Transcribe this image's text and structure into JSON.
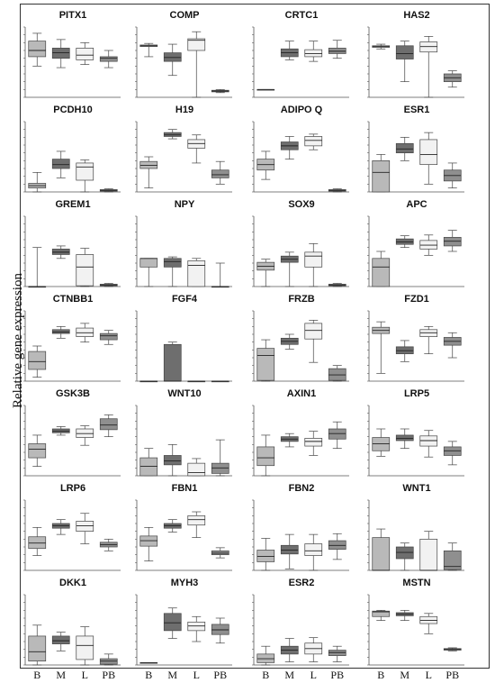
{
  "y_axis_label": "Relative gene expression",
  "x_groups": [
    "B",
    "M",
    "L",
    "PB"
  ],
  "group_colors": {
    "B": "#b9b9b9",
    "M": "#6e6e6e",
    "L": "#f2f2f2",
    "PB": "#8f8f8f"
  },
  "chart_data": [
    {
      "type": "box",
      "title": "PITX1",
      "ylim": [
        -6,
        3
      ],
      "boxes": [
        [
          -2,
          -0.8,
          0,
          1.2,
          2.2
        ],
        [
          -2.2,
          -1,
          -0.3,
          0.3,
          1.4
        ],
        [
          -1.8,
          -1.2,
          -0.6,
          0.3,
          1
        ],
        [
          -2.2,
          -1.4,
          -1,
          -0.8,
          0
        ]
      ]
    },
    {
      "type": "box",
      "title": "COMP",
      "ylim": [
        -6,
        3
      ],
      "boxes": [
        [
          -0.8,
          0.5,
          0.6,
          0.7,
          0.9
        ],
        [
          -3.2,
          -1.4,
          -0.9,
          -0.3,
          0.8
        ],
        [
          -6,
          0,
          1.3,
          1.5,
          2.4
        ],
        [
          -5.4,
          -5.3,
          -5.2,
          -5.1,
          -5
        ]
      ]
    },
    {
      "type": "box",
      "title": "CRTC1",
      "ylim": [
        -6,
        3
      ],
      "boxes": [
        [
          -5,
          -5,
          -5,
          -5,
          -5
        ],
        [
          -1.2,
          -0.8,
          -0.3,
          0.2,
          1.2
        ],
        [
          -1.4,
          -0.8,
          -0.4,
          0.1,
          1.2
        ],
        [
          -1,
          -0.4,
          -0.1,
          0.3,
          1.3
        ]
      ]
    },
    {
      "type": "box",
      "title": "HAS2",
      "ylim": [
        -6,
        3
      ],
      "boxes": [
        [
          0.2,
          0.4,
          0.5,
          0.6,
          0.8
        ],
        [
          -4,
          -1.1,
          -0.4,
          0.6,
          1.2
        ],
        [
          -6,
          -0.2,
          0.5,
          1.1,
          1.8
        ],
        [
          -4.7,
          -4,
          -3.5,
          -3,
          -2.6
        ]
      ]
    },
    {
      "type": "box",
      "title": "PCDH10",
      "ylim": [
        -6,
        3
      ],
      "boxes": [
        [
          -6,
          -5.5,
          -5.2,
          -4.9,
          -3.5
        ],
        [
          -4.2,
          -3,
          -2.5,
          -1.8,
          -0.8
        ],
        [
          -6,
          -4.5,
          -2.8,
          -2.3,
          -1.9
        ],
        [
          -6,
          -5.9,
          -5.8,
          -5.7,
          -5.6
        ]
      ]
    },
    {
      "type": "box",
      "title": "H19",
      "ylim": [
        -6,
        3
      ],
      "boxes": [
        [
          -5.5,
          -3,
          -2.6,
          -2.1,
          -1.5
        ],
        [
          0.8,
          1.1,
          1.3,
          1.6,
          2
        ],
        [
          -2.3,
          -0.4,
          0.2,
          0.7,
          1.3
        ],
        [
          -5,
          -4.2,
          -3.8,
          -3.2,
          -2.1
        ]
      ]
    },
    {
      "type": "box",
      "title": "ADIPO Q",
      "ylim": [
        -6,
        3
      ],
      "boxes": [
        [
          -4.4,
          -3.2,
          -2.5,
          -1.8,
          -0.8
        ],
        [
          -1.8,
          -0.6,
          -0.1,
          0.4,
          1.1
        ],
        [
          -0.6,
          -0.1,
          0.6,
          1.1,
          1.4
        ],
        [
          -6,
          -5.9,
          -5.8,
          -5.7,
          -5.6
        ]
      ]
    },
    {
      "type": "box",
      "title": "ESR1",
      "ylim": [
        -6,
        3
      ],
      "boxes": [
        [
          -6,
          -6,
          -3.5,
          -2,
          -1.2
        ],
        [
          -2,
          -1,
          -0.5,
          0.2,
          1
        ],
        [
          -5,
          -2.5,
          -1.2,
          0.7,
          1.6
        ],
        [
          -5.5,
          -4.6,
          -3.9,
          -3.2,
          -2.3
        ]
      ]
    },
    {
      "type": "box",
      "title": "GREM1",
      "ylim": [
        -6,
        3
      ],
      "boxes": [
        [
          -6,
          -6,
          -6,
          -6,
          -1
        ],
        [
          -2.4,
          -1.9,
          -1.6,
          -1.2,
          -0.8
        ],
        [
          -6,
          -5.9,
          -3.5,
          -1.9,
          -1.1
        ],
        [
          -6,
          -5.9,
          -5.8,
          -5.7,
          -5.6
        ]
      ]
    },
    {
      "type": "box",
      "title": "NPY",
      "ylim": [
        -6,
        3
      ],
      "boxes": [
        [
          -6,
          -3.5,
          -2.4,
          -2.4,
          -2.4
        ],
        [
          -6,
          -3.5,
          -2.8,
          -2.4,
          -2.2
        ],
        [
          -6,
          -6,
          -3.3,
          -2.7,
          -2.4
        ],
        [
          -6,
          -6,
          -6,
          -6,
          -3
        ]
      ]
    },
    {
      "type": "box",
      "title": "SOX9",
      "ylim": [
        -6,
        3
      ],
      "boxes": [
        [
          -6,
          -3.9,
          -3.4,
          -2.9,
          -2.5
        ],
        [
          -6,
          -2.9,
          -2.5,
          -2.1,
          -1.6
        ],
        [
          -6,
          -3.5,
          -2.1,
          -1.6,
          -0.5
        ],
        [
          -6,
          -5.9,
          -5.8,
          -5.7,
          -5.6
        ]
      ]
    },
    {
      "type": "box",
      "title": "APC",
      "ylim": [
        -6,
        3
      ],
      "boxes": [
        [
          -6,
          -6,
          -3.5,
          -2.4,
          -1.5
        ],
        [
          -1,
          -0.6,
          -0.3,
          0.1,
          0.5
        ],
        [
          -2,
          -1.2,
          -0.7,
          -0.1,
          0.6
        ],
        [
          -1.5,
          -0.8,
          -0.2,
          0.3,
          1.2
        ]
      ]
    },
    {
      "type": "box",
      "title": "CTNBB1",
      "ylim": [
        -6,
        3
      ],
      "boxes": [
        [
          -5.5,
          -4.5,
          -3.5,
          -2.2,
          -1.5
        ],
        [
          -0.5,
          0.1,
          0.3,
          0.6,
          1
        ],
        [
          -1,
          -0.3,
          0.2,
          0.8,
          1.4
        ],
        [
          -1.3,
          -0.7,
          -0.2,
          0.1,
          0.5
        ]
      ]
    },
    {
      "type": "box",
      "title": "FGF4",
      "ylim": [
        -6,
        3
      ],
      "boxes": [
        [
          -6,
          -6,
          -6,
          -6,
          -6
        ],
        [
          -6,
          -6,
          -6,
          -1.3,
          -1
        ],
        [
          -6,
          -6,
          -6,
          -6,
          -6
        ],
        [
          -6,
          -6,
          -6,
          -6,
          -6
        ]
      ]
    },
    {
      "type": "box",
      "title": "FRZB",
      "ylim": [
        -6,
        3
      ],
      "boxes": [
        [
          -6,
          -5.9,
          -2.7,
          -1.8,
          -0.7
        ],
        [
          -1.9,
          -1.3,
          -0.9,
          -0.5,
          0
        ],
        [
          -3.6,
          -0.6,
          0.5,
          1.4,
          1.8
        ],
        [
          -6,
          -5.9,
          -5.2,
          -4.4,
          -4
        ]
      ]
    },
    {
      "type": "box",
      "title": "FZD1",
      "ylim": [
        -6,
        3
      ],
      "boxes": [
        [
          -5,
          0.1,
          0.5,
          0.9,
          1.6
        ],
        [
          -3.5,
          -2.5,
          -2.1,
          -1.6,
          -0.8
        ],
        [
          -2.5,
          -0.3,
          0.2,
          0.6,
          1
        ],
        [
          -3,
          -1.4,
          -0.9,
          -0.4,
          0.2
        ]
      ]
    },
    {
      "type": "box",
      "title": "GSK3B",
      "ylim": [
        -6,
        3
      ],
      "boxes": [
        [
          -4.8,
          -3.7,
          -2.6,
          -1.9,
          -0.8
        ],
        [
          -0.8,
          -0.5,
          -0.3,
          0,
          0.3
        ],
        [
          -2.1,
          -1.1,
          -0.6,
          0,
          0.4
        ],
        [
          -1,
          -0.1,
          0.5,
          1.3,
          1.8
        ]
      ]
    },
    {
      "type": "box",
      "title": "WNT10",
      "ylim": [
        -6,
        3
      ],
      "boxes": [
        [
          -6,
          -6,
          -4.8,
          -3.7,
          -2.5
        ],
        [
          -6,
          -4.6,
          -4.1,
          -3.4,
          -2
        ],
        [
          -6,
          -6,
          -5.6,
          -4.4,
          -3.8
        ],
        [
          -6,
          -5.7,
          -5,
          -4.4,
          -1.4
        ]
      ]
    },
    {
      "type": "box",
      "title": "AXIN1",
      "ylim": [
        -6,
        3
      ],
      "boxes": [
        [
          -6,
          -4.7,
          -3.7,
          -2.3,
          -0.8
        ],
        [
          -2.3,
          -1.6,
          -1.3,
          -1,
          -0.6
        ],
        [
          -3.4,
          -2.2,
          -1.6,
          -1.2,
          -0.3
        ],
        [
          -2.5,
          -1.3,
          -0.6,
          0,
          0.9
        ]
      ]
    },
    {
      "type": "box",
      "title": "LRP5",
      "ylim": [
        -6,
        3
      ],
      "boxes": [
        [
          -3.5,
          -2.8,
          -1.9,
          -1.1,
          0
        ],
        [
          -2.5,
          -1.5,
          -1.2,
          -0.8,
          0
        ],
        [
          -3.6,
          -2.2,
          -1.5,
          -0.9,
          -0.2
        ],
        [
          -4.6,
          -3.4,
          -2.8,
          -2.3,
          -1.6
        ]
      ]
    },
    {
      "type": "box",
      "title": "LRP6",
      "ylim": [
        -6,
        3
      ],
      "boxes": [
        [
          -4.1,
          -3.2,
          -2.5,
          -1.7,
          -0.5
        ],
        [
          -1.4,
          -0.6,
          -0.3,
          0,
          0.5
        ],
        [
          -2.6,
          -1,
          -0.3,
          0.3,
          1.3
        ],
        [
          -3.5,
          -3,
          -2.7,
          -2.4,
          -2
        ]
      ]
    },
    {
      "type": "box",
      "title": "FBN1",
      "ylim": [
        -6,
        3
      ],
      "boxes": [
        [
          -4.8,
          -2.9,
          -2.2,
          -1.6,
          -0.5
        ],
        [
          -1.1,
          -0.6,
          -0.3,
          0,
          0.5
        ],
        [
          -1.8,
          -0.2,
          0.5,
          1,
          1.5
        ],
        [
          -4.4,
          -4,
          -3.8,
          -3.5,
          -3.1
        ]
      ]
    },
    {
      "type": "box",
      "title": "FBN2",
      "ylim": [
        -6,
        3
      ],
      "boxes": [
        [
          -6,
          -4.9,
          -4.2,
          -3.4,
          -1.9
        ],
        [
          -5.8,
          -3.9,
          -3.4,
          -2.8,
          -1.4
        ],
        [
          -6,
          -4.1,
          -3.5,
          -2.6,
          -1.4
        ],
        [
          -4.6,
          -3.3,
          -2.8,
          -2.2,
          -1.3
        ]
      ]
    },
    {
      "type": "box",
      "title": "WNT1",
      "ylim": [
        -6,
        3
      ],
      "boxes": [
        [
          -6,
          -6,
          -6,
          -1.8,
          -0.7
        ],
        [
          -6,
          -4.5,
          -3.7,
          -3,
          -2.5
        ],
        [
          -6,
          -6,
          -6,
          -2,
          -1
        ],
        [
          -6,
          -5.9,
          -5.5,
          -3.5,
          -2.5
        ]
      ]
    },
    {
      "type": "box",
      "title": "DKK1",
      "ylim": [
        -6,
        3
      ],
      "boxes": [
        [
          -6,
          -5.5,
          -4.3,
          -2.3,
          -0.9
        ],
        [
          -4.2,
          -3.3,
          -2.9,
          -2.3,
          -1.8
        ],
        [
          -6,
          -5.3,
          -3.5,
          -2.3,
          -1.1
        ],
        [
          -6,
          -5.9,
          -5.5,
          -5.2,
          -4.6
        ]
      ]
    },
    {
      "type": "box",
      "title": "MYH3",
      "ylim": [
        -6,
        3
      ],
      "boxes": [
        [
          -5.7,
          -5.7,
          -5.7,
          -5.7,
          -5.7
        ],
        [
          -2.6,
          -1.6,
          -0.6,
          0.6,
          1.3
        ],
        [
          -3,
          -1.6,
          -1,
          -0.5,
          0.2
        ],
        [
          -3.2,
          -2.1,
          -1.5,
          -0.8,
          0
        ]
      ]
    },
    {
      "type": "box",
      "title": "ESR2",
      "ylim": [
        -6,
        3
      ],
      "boxes": [
        [
          -6,
          -5.7,
          -5.2,
          -4.6,
          -3.6
        ],
        [
          -5.6,
          -4.6,
          -4.1,
          -3.6,
          -2.6
        ],
        [
          -5.6,
          -4.6,
          -3.9,
          -3.2,
          -2.5
        ],
        [
          -5.6,
          -4.8,
          -4.4,
          -4.1,
          -3.6
        ]
      ]
    },
    {
      "type": "box",
      "title": "MSTN",
      "ylim": [
        -6,
        3
      ],
      "boxes": [
        [
          -0.3,
          0.2,
          0.8,
          0.9,
          1
        ],
        [
          -0.3,
          0.3,
          0.5,
          0.7,
          1
        ],
        [
          -2,
          -0.7,
          -0.3,
          0.2,
          0.6
        ],
        [
          -4.2,
          -4.1,
          -4,
          -3.9,
          -3.8
        ]
      ]
    }
  ]
}
